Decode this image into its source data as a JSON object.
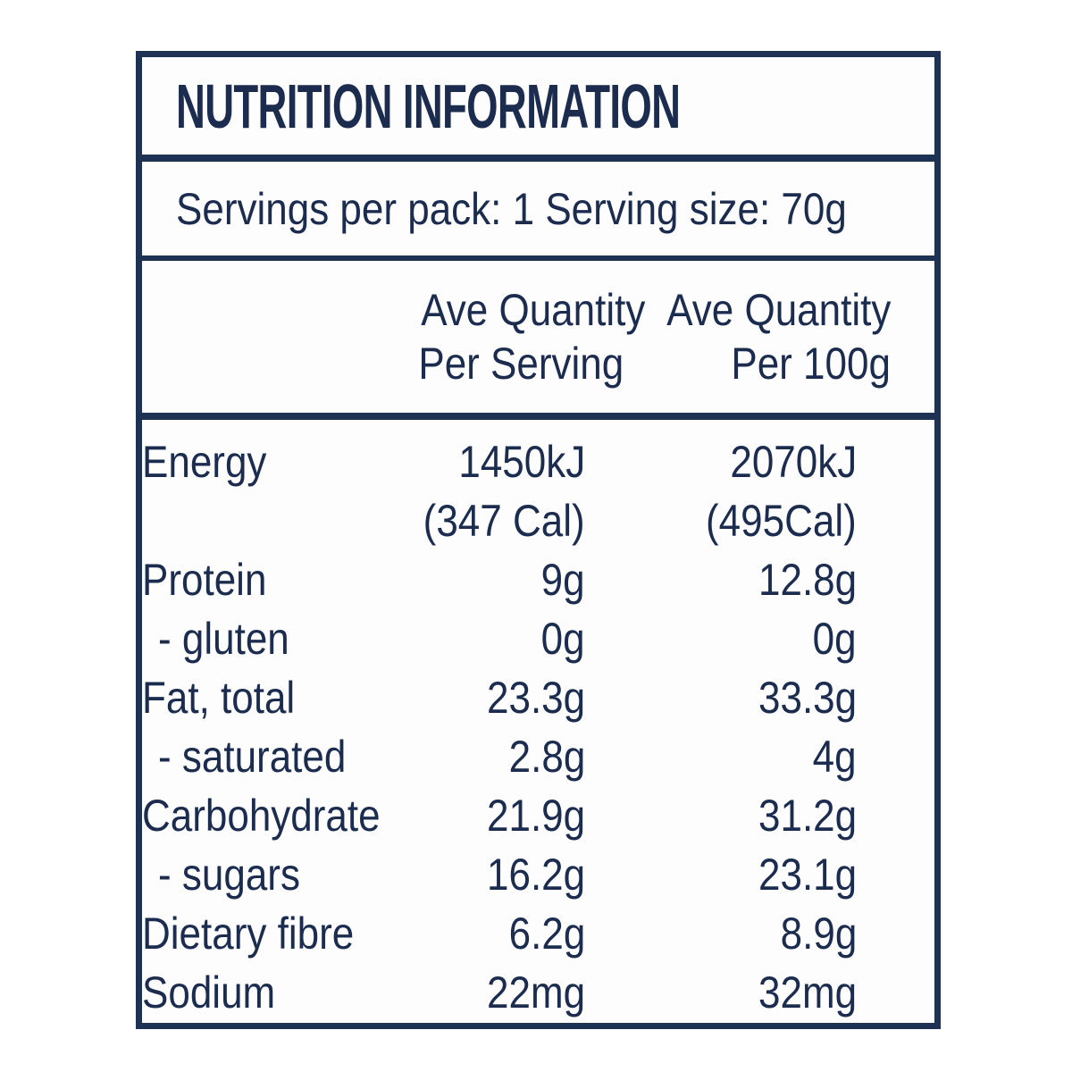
{
  "label": {
    "title": "NUTRITION INFORMATION",
    "servings_line": "Servings per pack: 1 Serving size: 70g",
    "headers": {
      "per_serving": {
        "line1": "Ave Quantity",
        "line2": "Per Serving"
      },
      "per_100g": {
        "line1": "Ave Quantity",
        "line2": "Per 100g"
      }
    },
    "rows": [
      {
        "nutrient": "Energy",
        "per_serving": "1450kJ",
        "per_serving_cal": "(347 Cal)",
        "per_100g": "2070kJ",
        "per_100g_cal": "(495Cal)"
      },
      {
        "nutrient": "Protein",
        "per_serving": "9g",
        "per_100g": "12.8g"
      },
      {
        "nutrient": "- gluten",
        "per_serving": "0g",
        "per_100g": "0g"
      },
      {
        "nutrient": "Fat, total",
        "per_serving": "23.3g",
        "per_100g": "33.3g"
      },
      {
        "nutrient": "- saturated",
        "per_serving": "2.8g",
        "per_100g": "4g"
      },
      {
        "nutrient": "Carbohydrate",
        "per_serving": "21.9g",
        "per_100g": "31.2g"
      },
      {
        "nutrient": "- sugars",
        "per_serving": "16.2g",
        "per_100g": "23.1g"
      },
      {
        "nutrient": "Dietary fibre",
        "per_serving": "6.2g",
        "per_100g": "8.9g"
      },
      {
        "nutrient": "Sodium",
        "per_serving": "22mg",
        "per_100g": "32mg"
      }
    ],
    "colors": {
      "ink": "#1b2c4f",
      "border": "#1e3353",
      "background": "#ffffff"
    }
  }
}
